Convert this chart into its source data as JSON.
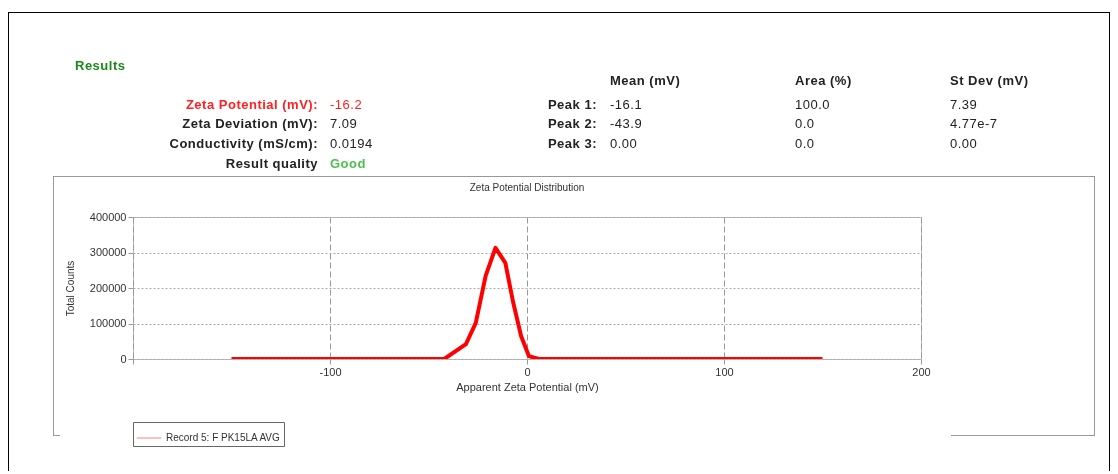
{
  "chart_data": {
    "type": "line",
    "title": "Zeta Potential Distribution",
    "xlabel": "Apparent Zeta Potential (mV)",
    "ylabel": "Total Counts",
    "x": [
      -150,
      -42,
      -31,
      -26,
      -21,
      -16,
      -11,
      -7,
      -3,
      1,
      6,
      150
    ],
    "series": [
      {
        "name": "Record 5: F PK15LA AVG",
        "color": "#ff0000",
        "values": [
          0,
          0,
          42000,
          102000,
          234000,
          313000,
          271000,
          159000,
          65000,
          8000,
          0,
          0
        ]
      }
    ],
    "xlim": [
      -200,
      200
    ],
    "xticks": [
      {
        "value": -200,
        "label": null
      },
      -100,
      0,
      100,
      200
    ],
    "ylim": [
      0,
      400000
    ],
    "yticks": [
      0,
      100000,
      200000,
      300000,
      400000
    ],
    "grid": true,
    "legend": "bottom",
    "annotations": [
      "Results",
      "Zeta Potential (mV):",
      "-16.2",
      "Zeta Deviation (mV):",
      "7.09",
      "Conductivity (mS/cm):",
      "0.0194",
      "Result quality",
      "Good",
      "Mean (mV)",
      "Area (%)",
      "St Dev (mV)",
      "Peak 1:",
      "-16.1",
      "100.0",
      "7.39",
      "Peak 2:",
      "-43.9",
      "0.0",
      "4.77e-7",
      "Peak 3:",
      "0.00",
      "0.0",
      "0.00"
    ]
  }
}
